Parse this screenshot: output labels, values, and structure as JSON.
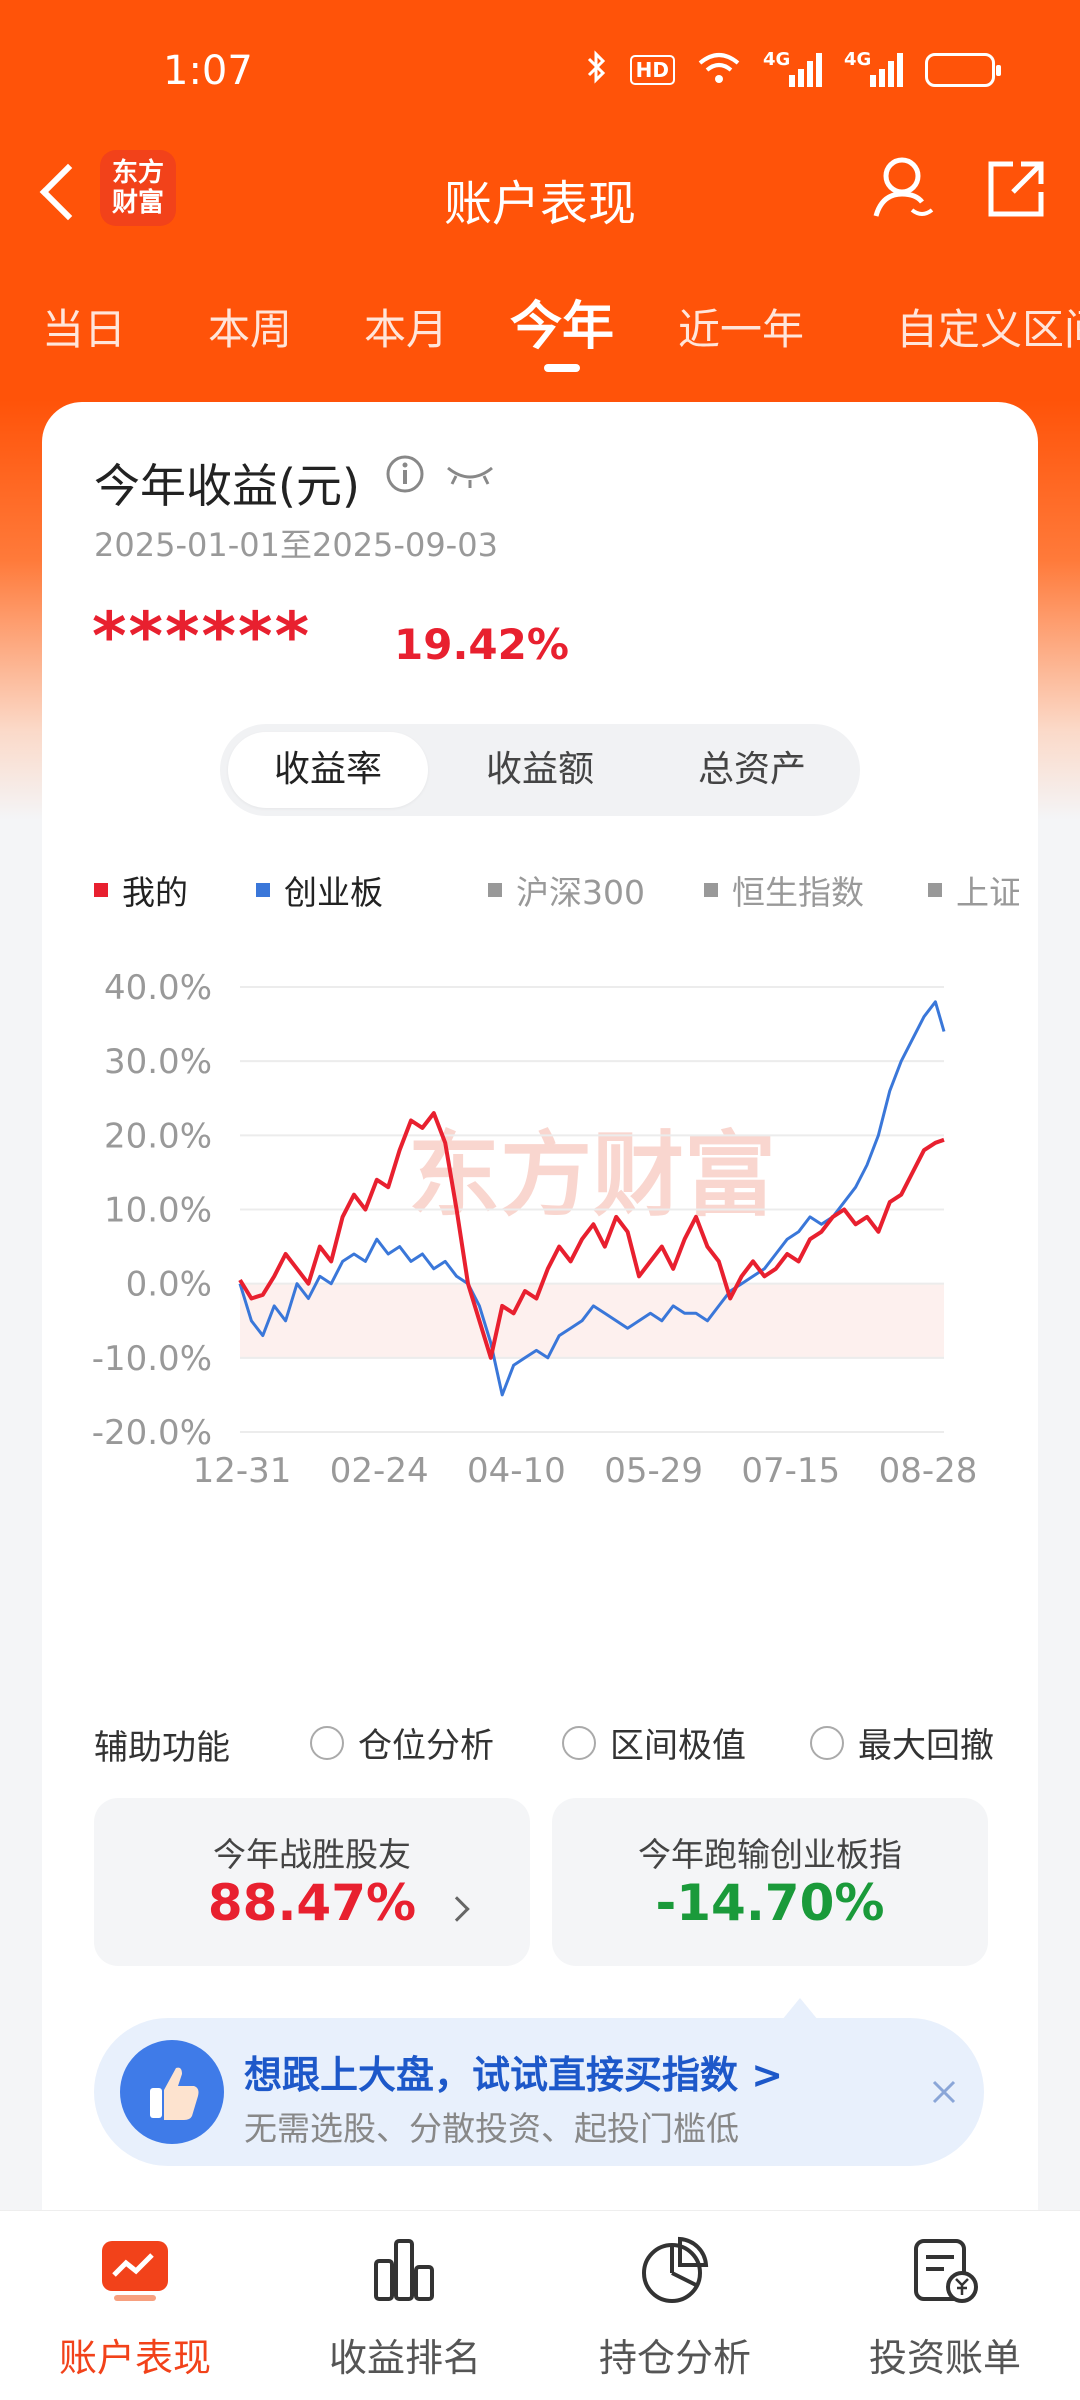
{
  "status_bar": {
    "time": "1:07",
    "hd": "HD",
    "net1": "4G",
    "net2": "4G"
  },
  "nav": {
    "logo_line1": "东方",
    "logo_line2": "财富",
    "title": "账户表现"
  },
  "tabs": [
    {
      "label": "当日"
    },
    {
      "label": "本周"
    },
    {
      "label": "本月"
    },
    {
      "label": "今年"
    },
    {
      "label": "近一年"
    },
    {
      "label": "自定义区间"
    }
  ],
  "summary": {
    "title": "今年收益(元)",
    "date_range": "2025-01-01至2025-09-03",
    "masked_value": "******",
    "return_pct": "19.42%"
  },
  "segment": [
    {
      "label": "收益率"
    },
    {
      "label": "收益额"
    },
    {
      "label": "总资产"
    }
  ],
  "legend": [
    {
      "label": "我的",
      "color": "#e8202f"
    },
    {
      "label": "创业板",
      "color": "#3a77d9"
    },
    {
      "label": "沪深300",
      "color": "#999999"
    },
    {
      "label": "恒生指数",
      "color": "#999999"
    },
    {
      "label": "上证",
      "color": "#999999"
    }
  ],
  "chart_data": {
    "type": "line",
    "watermark": "东方财富",
    "x_ticks": [
      "12-31",
      "02-24",
      "04-10",
      "05-29",
      "07-15",
      "08-28"
    ],
    "y_ticks": [
      "40.0%",
      "30.0%",
      "20.0%",
      "10.0%",
      "0.0%",
      "-10.0%",
      "-20.0%"
    ],
    "ylim": [
      -20,
      40
    ],
    "x_range": [
      0,
      247
    ],
    "series": [
      {
        "name": "我的",
        "color": "#e8202f",
        "x": [
          0,
          4,
          8,
          12,
          16,
          20,
          24,
          28,
          32,
          36,
          40,
          44,
          48,
          52,
          56,
          60,
          64,
          68,
          72,
          76,
          80,
          84,
          88,
          92,
          96,
          100,
          104,
          108,
          112,
          116,
          120,
          124,
          128,
          132,
          136,
          140,
          144,
          148,
          152,
          156,
          160,
          164,
          168,
          172,
          176,
          180,
          184,
          188,
          192,
          196,
          200,
          204,
          208,
          212,
          216,
          220,
          224,
          228,
          232,
          236,
          240,
          244,
          247
        ],
        "values": [
          0.5,
          -2,
          -1.5,
          1,
          4,
          2,
          0,
          5,
          3,
          9,
          12,
          10,
          14,
          13,
          18,
          22,
          21,
          23,
          19,
          10,
          0,
          -5,
          -10,
          -3,
          -4,
          -1,
          -2,
          2,
          5,
          3,
          6,
          8,
          5,
          9,
          7,
          1,
          3,
          5,
          2,
          6,
          9,
          5,
          3,
          -2,
          1,
          3,
          1,
          2,
          4,
          3,
          6,
          7,
          9,
          10,
          8,
          9,
          7,
          11,
          12,
          15,
          18,
          19,
          19.4
        ]
      },
      {
        "name": "创业板",
        "color": "#3a77d9",
        "x": [
          0,
          4,
          8,
          12,
          16,
          20,
          24,
          28,
          32,
          36,
          40,
          44,
          48,
          52,
          56,
          60,
          64,
          68,
          72,
          76,
          80,
          84,
          88,
          92,
          96,
          100,
          104,
          108,
          112,
          116,
          120,
          124,
          128,
          132,
          136,
          140,
          144,
          148,
          152,
          156,
          160,
          164,
          168,
          172,
          176,
          180,
          184,
          188,
          192,
          196,
          200,
          204,
          208,
          212,
          216,
          220,
          224,
          228,
          232,
          236,
          240,
          244,
          247
        ],
        "values": [
          0,
          -5,
          -7,
          -3,
          -5,
          0,
          -2,
          1,
          0,
          3,
          4,
          3,
          6,
          4,
          5,
          3,
          4,
          2,
          3,
          1,
          0,
          -3,
          -8,
          -15,
          -11,
          -10,
          -9,
          -10,
          -7,
          -6,
          -5,
          -3,
          -4,
          -5,
          -6,
          -5,
          -4,
          -5,
          -3,
          -4,
          -4,
          -5,
          -3,
          -1,
          0,
          1,
          2,
          4,
          6,
          7,
          9,
          8,
          9,
          11,
          13,
          16,
          20,
          26,
          30,
          33,
          36,
          38,
          34
        ]
      }
    ]
  },
  "aux": {
    "label": "辅助功能",
    "options": [
      {
        "label": "仓位分析"
      },
      {
        "label": "区间极值"
      },
      {
        "label": "最大回撤"
      }
    ]
  },
  "stats": [
    {
      "label": "今年战胜股友",
      "value": "88.47%",
      "color": "#e8202f"
    },
    {
      "label": "今年跑输创业板指",
      "value": "-14.70%",
      "color": "#1a9a3a"
    }
  ],
  "promo": {
    "title": "想跟上大盘，试试直接买指数 >",
    "subtitle": "无需选股、分散投资、起投门槛低"
  },
  "bottom_nav": [
    {
      "label": "账户表现"
    },
    {
      "label": "收益排名"
    },
    {
      "label": "持仓分析"
    },
    {
      "label": "投资账单"
    }
  ]
}
